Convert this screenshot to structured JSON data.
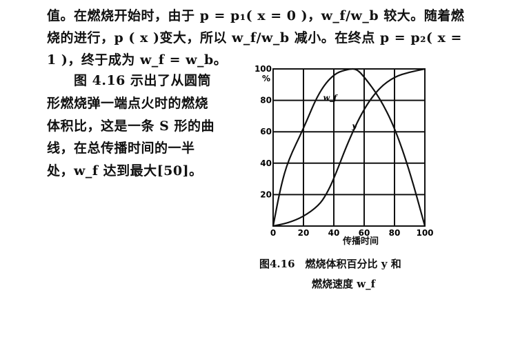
{
  "body_text": {
    "top_lines": [
      "值。在燃烧开始时，由于 p = p₁( x = 0 )，w_f/w_b 较大。随着燃",
      "烧的进行，p ( x )变大，所以 w_f/w_b 减小。在终点 p = p₂( x =",
      "1 )，终于成为 w_f = w_b。"
    ],
    "side_paragraph": [
      "图 4.16 示出了从圆筒",
      "形燃烧弹一端点火时的燃烧",
      "体积比，这是一条 S 形的曲",
      "线，在总传播时间的一半",
      "处，w_f 达到最大[50]。"
    ]
  },
  "chart_data": {
    "type": "line",
    "title": "",
    "xlabel": "传播时间",
    "ylabel": "%",
    "xlim": [
      0,
      100
    ],
    "ylim": [
      0,
      100
    ],
    "xticks": [
      "0",
      "20",
      "40",
      "60",
      "80",
      "100"
    ],
    "yticks": [
      "20",
      "40",
      "60",
      "80",
      "100"
    ],
    "grid": true,
    "series": [
      {
        "name": "w_f",
        "x": [
          0,
          5,
          10,
          20,
          30,
          40,
          50,
          55,
          60,
          70,
          80,
          90,
          100
        ],
        "y": [
          0,
          25,
          42,
          62,
          85,
          97,
          100,
          100,
          95,
          82,
          63,
          35,
          0
        ]
      },
      {
        "name": "y",
        "x": [
          0,
          10,
          20,
          30,
          35,
          40,
          50,
          60,
          70,
          80,
          90,
          100
        ],
        "y": [
          0,
          2,
          6,
          13,
          20,
          30,
          55,
          75,
          88,
          95,
          98,
          100
        ]
      }
    ]
  },
  "caption": {
    "line1": "图4.16　燃烧体积百分比 y 和",
    "line2": "燃烧速度 w_f"
  }
}
